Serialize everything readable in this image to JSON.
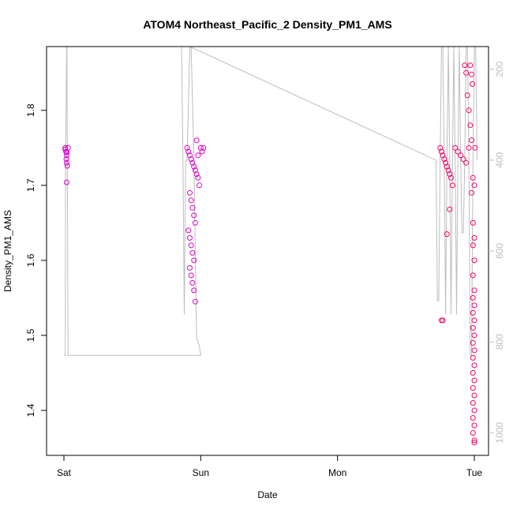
{
  "chart_data": {
    "type": "scatter",
    "title": "ATOM4 Northeast_Pacific_2 Density_PM1_AMS",
    "xlabel": "Date",
    "ylabel": "Density_PM1_AMS",
    "x_ticks": [
      "Sat",
      "Sun",
      "Mon",
      "Tue"
    ],
    "x_range_days": [
      -0.03,
      3.1
    ],
    "ylim": [
      1.34,
      1.885
    ],
    "y_ticks": [
      1.4,
      1.5,
      1.6,
      1.7,
      1.8
    ],
    "y_tick_labels": [
      "1.4",
      "1.5",
      "1.6",
      "1.7",
      "1.8"
    ],
    "secondary_axis": {
      "side": "right",
      "ylim": [
        1050,
        150
      ],
      "ticks": [
        200,
        400,
        600,
        800,
        1000
      ],
      "tick_labels": [
        "200",
        "400",
        "600",
        "800",
        "1000"
      ],
      "color": "#bdbdbd",
      "reversed": true
    },
    "grid": false,
    "legend": "none",
    "colors": {
      "points_low_altitude": "#ff0066",
      "points_high_altitude": "#dd00cc",
      "altitude_line": "#bdbdbd",
      "axes": "#000000"
    },
    "altitude_trace": [
      [
        0.0,
        830
      ],
      [
        0.01,
        830
      ],
      [
        0.012,
        400
      ],
      [
        0.02,
        150
      ],
      [
        0.022,
        150
      ],
      [
        0.03,
        830
      ],
      [
        0.9,
        830
      ],
      [
        1.0,
        830
      ],
      [
        0.99,
        810
      ],
      [
        0.97,
        790
      ],
      [
        0.95,
        400
      ],
      [
        0.93,
        150
      ],
      [
        0.92,
        150
      ],
      [
        0.9,
        400
      ],
      [
        0.89,
        400
      ],
      [
        0.88,
        740
      ],
      [
        0.87,
        400
      ],
      [
        0.86,
        150
      ],
      [
        0.87,
        150
      ],
      [
        0.92,
        150
      ],
      [
        2.72,
        400
      ],
      [
        2.73,
        710
      ],
      [
        2.74,
        710
      ],
      [
        2.75,
        400
      ],
      [
        2.76,
        150
      ],
      [
        2.77,
        150
      ],
      [
        2.78,
        400
      ],
      [
        2.79,
        740
      ],
      [
        2.8,
        400
      ],
      [
        2.81,
        150
      ],
      [
        2.82,
        400
      ],
      [
        2.83,
        740
      ],
      [
        2.84,
        400
      ],
      [
        2.85,
        150
      ],
      [
        2.86,
        400
      ],
      [
        2.87,
        740
      ],
      [
        2.88,
        400
      ],
      [
        2.89,
        150
      ],
      [
        2.9,
        400
      ],
      [
        2.91,
        560
      ],
      [
        2.92,
        560
      ],
      [
        2.93,
        400
      ],
      [
        2.94,
        150
      ],
      [
        2.95,
        150
      ],
      [
        2.96,
        400
      ],
      [
        2.97,
        830
      ],
      [
        2.98,
        830
      ],
      [
        2.99,
        400
      ],
      [
        3.0,
        150
      ],
      [
        3.01,
        150
      ],
      [
        3.02,
        400
      ]
    ],
    "series": [
      {
        "points": [
          [
            0.01,
            1.75
          ],
          [
            0.015,
            1.745
          ],
          [
            0.02,
            1.74
          ],
          [
            0.018,
            1.735
          ],
          [
            0.02,
            1.73
          ],
          [
            0.025,
            1.726
          ],
          [
            0.02,
            1.704
          ],
          [
            0.01,
            1.748
          ],
          [
            0.03,
            1.75
          ],
          [
            0.022,
            1.744
          ],
          [
            0.9,
            1.75
          ],
          [
            0.91,
            1.745
          ],
          [
            0.92,
            1.74
          ],
          [
            0.93,
            1.735
          ],
          [
            0.94,
            1.73
          ],
          [
            0.95,
            1.725
          ],
          [
            0.96,
            1.72
          ],
          [
            0.97,
            1.715
          ],
          [
            0.98,
            1.71
          ],
          [
            0.99,
            1.7
          ],
          [
            0.92,
            1.69
          ],
          [
            0.93,
            1.68
          ],
          [
            0.94,
            1.67
          ],
          [
            0.95,
            1.66
          ],
          [
            0.96,
            1.65
          ],
          [
            0.91,
            1.64
          ],
          [
            0.92,
            1.63
          ],
          [
            0.93,
            1.62
          ],
          [
            0.94,
            1.61
          ],
          [
            0.95,
            1.6
          ],
          [
            0.92,
            1.59
          ],
          [
            0.93,
            1.58
          ],
          [
            0.94,
            1.57
          ],
          [
            0.95,
            1.56
          ],
          [
            0.96,
            1.545
          ],
          [
            1.0,
            1.75
          ],
          [
            1.02,
            1.75
          ],
          [
            1.01,
            1.745
          ],
          [
            0.98,
            1.74
          ],
          [
            0.97,
            1.76
          ],
          [
            2.75,
            1.75
          ],
          [
            2.76,
            1.745
          ],
          [
            2.77,
            1.74
          ],
          [
            2.78,
            1.735
          ],
          [
            2.79,
            1.73
          ],
          [
            2.8,
            1.725
          ],
          [
            2.81,
            1.72
          ],
          [
            2.82,
            1.715
          ],
          [
            2.83,
            1.71
          ],
          [
            2.84,
            1.7
          ],
          [
            2.76,
            1.52
          ],
          [
            2.77,
            1.52
          ],
          [
            2.8,
            1.635
          ],
          [
            2.82,
            1.668
          ],
          [
            2.86,
            1.75
          ],
          [
            2.88,
            1.745
          ],
          [
            2.9,
            1.74
          ],
          [
            2.92,
            1.735
          ],
          [
            2.94,
            1.73
          ],
          [
            2.96,
            1.75
          ],
          [
            2.93,
            1.86
          ],
          [
            2.94,
            1.85
          ],
          [
            2.95,
            1.82
          ],
          [
            2.96,
            1.8
          ],
          [
            2.97,
            1.78
          ],
          [
            2.98,
            1.76
          ],
          [
            2.99,
            1.71
          ],
          [
            3.0,
            1.7
          ],
          [
            2.98,
            1.69
          ],
          [
            2.99,
            1.65
          ],
          [
            3.0,
            1.63
          ],
          [
            2.99,
            1.62
          ],
          [
            3.0,
            1.6
          ],
          [
            2.99,
            1.58
          ],
          [
            3.0,
            1.56
          ],
          [
            2.99,
            1.55
          ],
          [
            3.0,
            1.54
          ],
          [
            2.99,
            1.53
          ],
          [
            3.0,
            1.52
          ],
          [
            2.99,
            1.51
          ],
          [
            3.0,
            1.5
          ],
          [
            2.99,
            1.49
          ],
          [
            3.0,
            1.48
          ],
          [
            2.99,
            1.47
          ],
          [
            3.0,
            1.46
          ],
          [
            2.99,
            1.45
          ],
          [
            3.0,
            1.44
          ],
          [
            2.99,
            1.43
          ],
          [
            3.0,
            1.42
          ],
          [
            2.99,
            1.41
          ],
          [
            3.0,
            1.4
          ],
          [
            2.99,
            1.39
          ],
          [
            3.0,
            1.38
          ],
          [
            2.99,
            1.37
          ],
          [
            3.0,
            1.36
          ],
          [
            3.0,
            1.357
          ],
          [
            2.98,
            1.848
          ],
          [
            2.97,
            1.86
          ],
          [
            2.985,
            1.835
          ],
          [
            3.005,
            1.75
          ]
        ]
      }
    ]
  }
}
